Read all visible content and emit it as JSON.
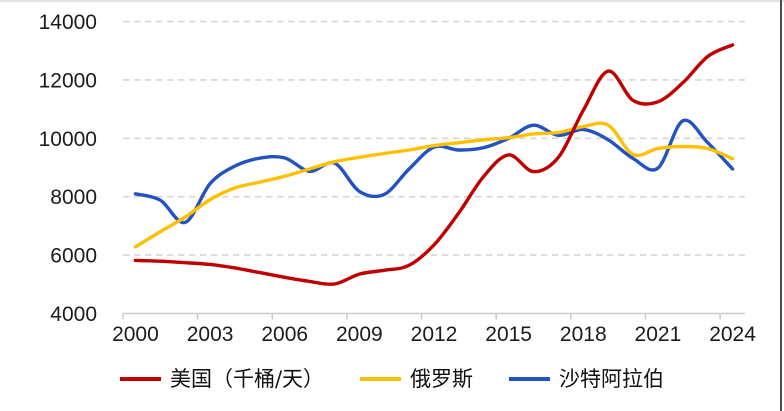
{
  "chart_data": {
    "type": "line",
    "title": "",
    "x": [
      2000,
      2001,
      2002,
      2003,
      2004,
      2005,
      2006,
      2007,
      2008,
      2009,
      2010,
      2011,
      2012,
      2013,
      2014,
      2015,
      2016,
      2017,
      2018,
      2019,
      2020,
      2021,
      2022,
      2023,
      2024
    ],
    "x_tick_labels": [
      "2000",
      "2003",
      "2006",
      "2009",
      "2012",
      "2015",
      "2018",
      "2021",
      "2024"
    ],
    "y_tick_labels": [
      "4000",
      "6000",
      "8000",
      "10000",
      "12000",
      "14000"
    ],
    "y_ticks": [
      4000,
      6000,
      8000,
      10000,
      12000,
      14000
    ],
    "ylim": [
      4000,
      14000
    ],
    "grid": "horizontal-dashed",
    "legend_position": "bottom-center",
    "line_style": "smooth",
    "series": [
      {
        "name": "美国（千桶/天）",
        "color": "#C00000",
        "values": [
          5820,
          5790,
          5740,
          5680,
          5560,
          5400,
          5240,
          5100,
          5010,
          5350,
          5480,
          5650,
          6350,
          7450,
          8700,
          9430,
          8860,
          9350,
          10960,
          12300,
          11300,
          11250,
          11900,
          12800,
          13200
        ]
      },
      {
        "name": "俄罗斯",
        "color": "#FFC000",
        "values": [
          6280,
          6800,
          7300,
          7900,
          8300,
          8500,
          8700,
          8950,
          9200,
          9350,
          9480,
          9600,
          9750,
          9850,
          9950,
          10020,
          10150,
          10200,
          10400,
          10450,
          9450,
          9650,
          9720,
          9650,
          9300
        ]
      },
      {
        "name": "沙特阿拉伯",
        "color": "#2353C1",
        "values": [
          8100,
          7880,
          7120,
          8450,
          9050,
          9320,
          9330,
          8870,
          9150,
          8180,
          8080,
          8950,
          9700,
          9600,
          9680,
          10000,
          10450,
          10100,
          10300,
          9950,
          9310,
          8980,
          10600,
          9850,
          8950
        ]
      }
    ]
  },
  "style": {
    "background": "#FFFFFF",
    "grid_color": "#D6D6D6",
    "axis_color": "#C9C9C9",
    "label_color": "#1C1C1C",
    "edge_line_color": "#4D4D4D"
  }
}
